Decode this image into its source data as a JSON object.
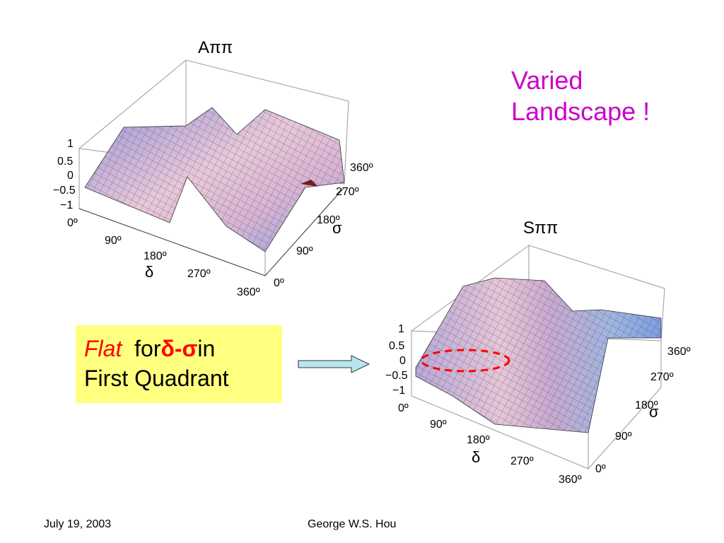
{
  "headline": [
    "Varied",
    "Landscape !"
  ],
  "callout": {
    "flat": "Flat",
    "for": "for",
    "symbols": "δ-σ",
    "in": "in",
    "line2": "First Quadrant"
  },
  "plots": [
    {
      "title": "Aππ",
      "z_ticks": [
        "1",
        "0.5",
        "0",
        "−0.5",
        "−1"
      ],
      "delta_axis_label": "δ",
      "delta_ticks": [
        "0º",
        "90º",
        "180º",
        "270º",
        "360º"
      ],
      "sigma_axis_label": "σ",
      "sigma_ticks": [
        "0º",
        "90º",
        "180º",
        "270º",
        "360º"
      ]
    },
    {
      "title": "Sππ",
      "z_ticks": [
        "1",
        "0.5",
        "0",
        "−0.5",
        "−1"
      ],
      "delta_axis_label": "δ",
      "delta_ticks": [
        "0º",
        "90º",
        "180º",
        "270º",
        "360º"
      ],
      "sigma_axis_label": "σ",
      "sigma_ticks": [
        "0º",
        "90º",
        "180º",
        "270º",
        "360º"
      ]
    }
  ],
  "colors": {
    "headline": "#cc00cc",
    "callout_background": "#ffff80",
    "emphasis": "#ff0000",
    "arrow": "#b8e6f0"
  },
  "footer": {
    "date": "July 19, 2003",
    "author": "George W.S. Hou"
  }
}
